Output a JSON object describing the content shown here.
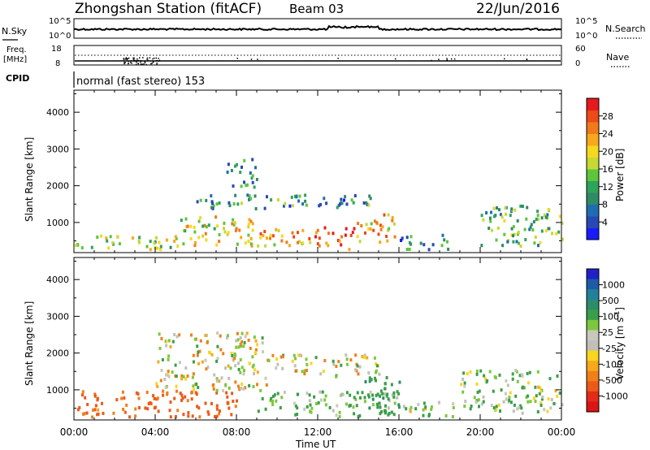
{
  "header": {
    "station": "Zhongshan Station (fitACF)",
    "beam": "Beam 03",
    "date": "22/Jun/2016"
  },
  "noise_panel": {
    "left_label": "N.Sky",
    "right_label": "N.Search",
    "ticks_left": [
      "10^5",
      "10^0"
    ],
    "ticks_right": [
      "10^5",
      "10^0"
    ]
  },
  "freq_panel": {
    "left_label_1": "Freq.",
    "left_label_2": "[MHz]",
    "left_ticks": [
      "18",
      "8"
    ],
    "right_ticks": [
      "60",
      "0"
    ],
    "right_label": "Nave"
  },
  "cpid": {
    "label": "CPID",
    "text": "normal (fast stereo) 153"
  },
  "time_axis": {
    "ticks": [
      "00:00",
      "04:00",
      "08:00",
      "12:00",
      "16:00",
      "20:00",
      "00:00"
    ],
    "label": "Time UT"
  },
  "range_axis": {
    "label": "Slant Range [km]",
    "ticks": [
      "1000",
      "2000",
      "3000",
      "4000"
    ]
  },
  "colorbars": {
    "power": {
      "label": "Power [dB]",
      "ticks": [
        "4",
        "8",
        "12",
        "16",
        "20",
        "24",
        "28"
      ],
      "colors": [
        "#1a1aff",
        "#2848b4",
        "#1f6db0",
        "#2f8a66",
        "#2ea35a",
        "#5cc63c",
        "#c7d832",
        "#f5d81e",
        "#f8a81c",
        "#f07a1a",
        "#ec4a18",
        "#e41a1c"
      ]
    },
    "velocity": {
      "label_main": "Velocity [m s",
      "label_sup": "-1",
      "label_end": "]",
      "ticks": [
        "1000",
        "500",
        "100",
        "25",
        "-25",
        "-100",
        "-500",
        "-1000"
      ],
      "colors": [
        "#2020c8",
        "#1f5aa8",
        "#22809c",
        "#2c8c6c",
        "#3a9e4a",
        "#7cc83c",
        "#c8c8bc",
        "#c0c0b8",
        "#f8d61e",
        "#f7a81c",
        "#f07f1a",
        "#ec5a18",
        "#e62a18",
        "#dc1414"
      ]
    }
  },
  "chart_data": [
    {
      "type": "heatmap",
      "name": "Power",
      "xlabel": "Time UT",
      "ylabel": "Slant Range [km]",
      "xlim": [
        "00:00",
        "24:00"
      ],
      "ylim": [
        180,
        4600
      ],
      "colorbar": {
        "label": "Power [dB]",
        "range": [
          0,
          32
        ]
      },
      "regions": [
        {
          "t0": 0.0,
          "t1": 5.0,
          "r0": 300,
          "r1": 700,
          "level": 0.55
        },
        {
          "t0": 5.0,
          "t1": 9.0,
          "r0": 400,
          "r1": 1200,
          "level": 0.6
        },
        {
          "t0": 9.0,
          "t1": 12.0,
          "r0": 400,
          "r1": 900,
          "level": 0.7
        },
        {
          "t0": 11.8,
          "t1": 13.8,
          "r0": 300,
          "r1": 900,
          "level": 0.9
        },
        {
          "t0": 13.8,
          "t1": 15.8,
          "r0": 500,
          "r1": 1300,
          "level": 0.7
        },
        {
          "t0": 6.0,
          "t1": 15.0,
          "r0": 1400,
          "r1": 1800,
          "level": 0.3
        },
        {
          "t0": 7.5,
          "t1": 9.0,
          "r0": 2000,
          "r1": 2800,
          "level": 0.3
        },
        {
          "t0": 16.0,
          "t1": 18.5,
          "r0": 300,
          "r1": 700,
          "level": 0.3
        },
        {
          "t0": 20.0,
          "t1": 24.0,
          "r0": 400,
          "r1": 1500,
          "level": 0.4
        }
      ]
    },
    {
      "type": "heatmap",
      "name": "Velocity",
      "xlabel": "Time UT",
      "ylabel": "Slant Range [km]",
      "xlim": [
        "00:00",
        "24:00"
      ],
      "ylim": [
        180,
        4600
      ],
      "colorbar": {
        "label": "Velocity [m s-1]",
        "range": [
          -1000,
          1000
        ]
      },
      "regions": [
        {
          "t0": 0.0,
          "t1": 8.0,
          "r0": 300,
          "r1": 1000,
          "v": -150
        },
        {
          "t0": 4.0,
          "t1": 9.5,
          "r0": 1000,
          "r1": 2600,
          "v": 10
        },
        {
          "t0": 9.5,
          "t1": 15.0,
          "r0": 1400,
          "r1": 2000,
          "v": 10
        },
        {
          "t0": 9.0,
          "t1": 16.0,
          "r0": 300,
          "r1": 1000,
          "v": 120
        },
        {
          "t0": 14.0,
          "t1": 16.0,
          "r0": 400,
          "r1": 1400,
          "v": 250
        },
        {
          "t0": 16.0,
          "t1": 19.0,
          "r0": 300,
          "r1": 700,
          "v": 60
        },
        {
          "t0": 19.0,
          "t1": 24.0,
          "r0": 400,
          "r1": 1600,
          "v": 80
        }
      ]
    }
  ]
}
